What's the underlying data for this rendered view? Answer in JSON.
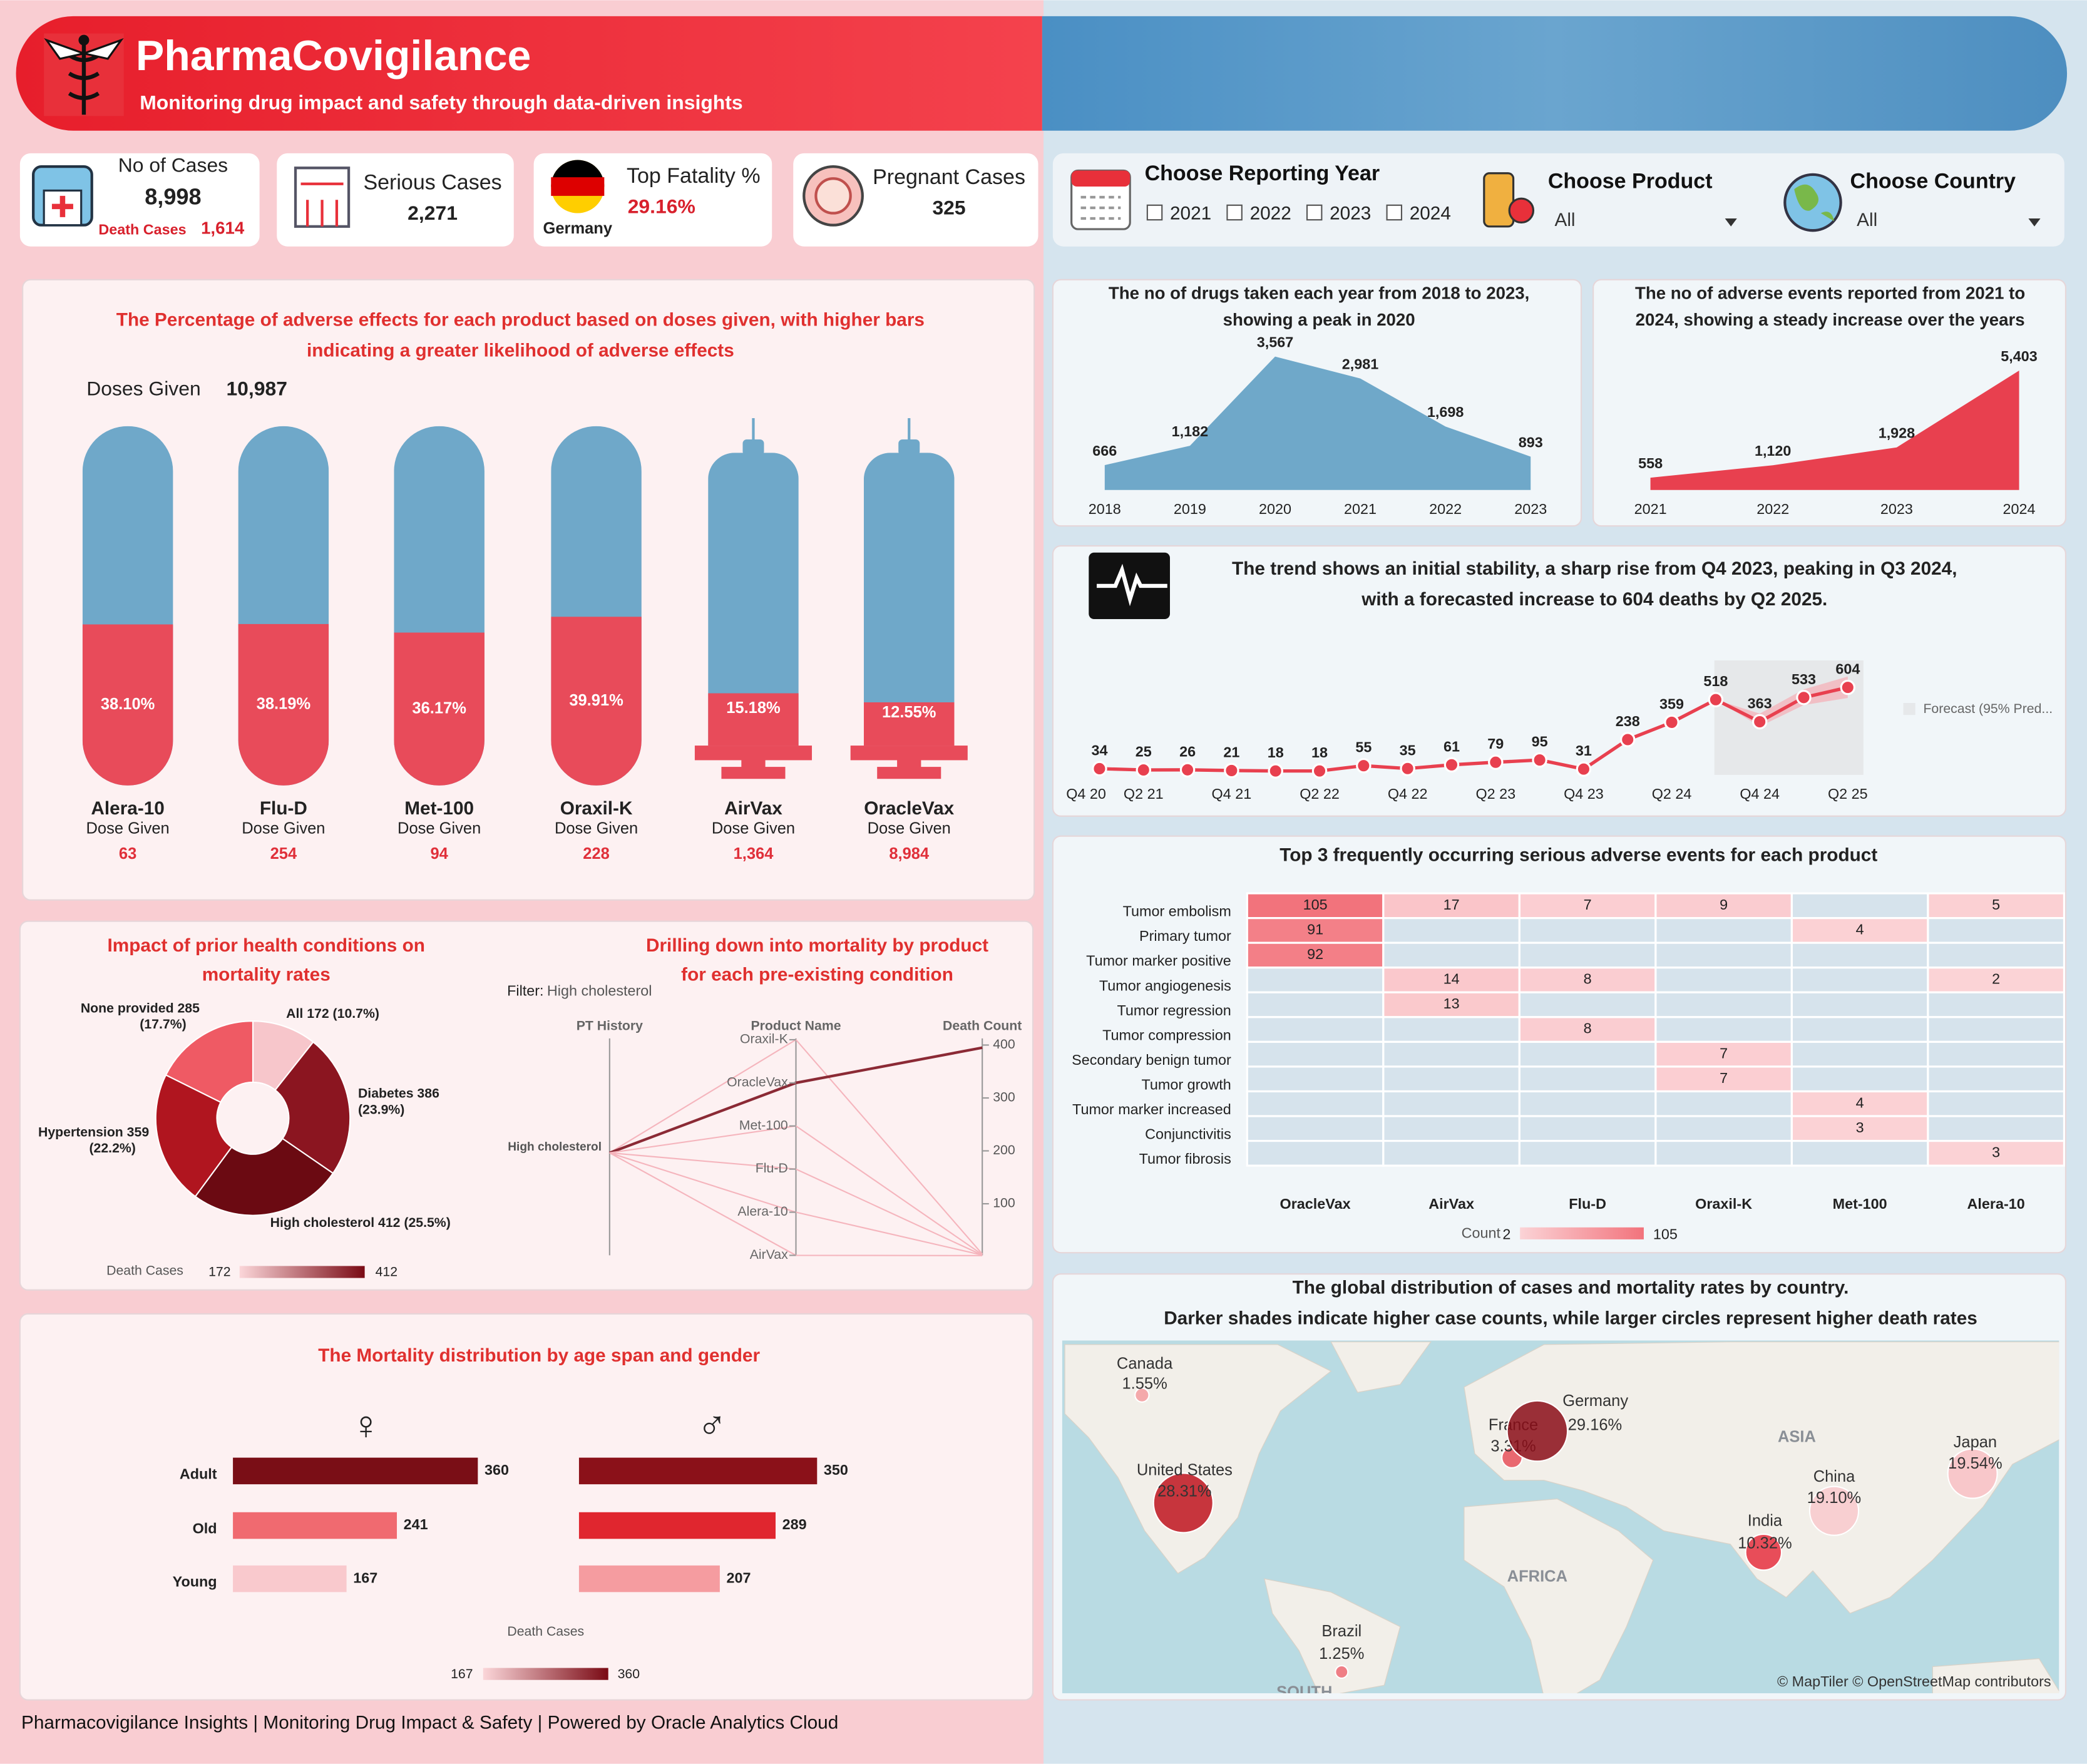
{
  "header": {
    "title": "PharmaCovigilance",
    "subtitle": "Monitoring drug impact and safety through data-driven insights"
  },
  "kpis": [
    {
      "label": "No of Cases",
      "value": "8,998",
      "sub_label": "Death Cases",
      "sub_value": "1,614"
    },
    {
      "label": "Serious Cases",
      "value": "2,271"
    },
    {
      "label": "Top Fatality %",
      "value": "29.16%",
      "sub_value": "Germany"
    },
    {
      "label": "Pregnant Cases",
      "value": "325"
    }
  ],
  "filters": {
    "year": {
      "label": "Choose Reporting Year",
      "options": [
        "2021",
        "2022",
        "2023",
        "2024"
      ]
    },
    "product": {
      "label": "Choose Product",
      "value": "All"
    },
    "country": {
      "label": "Choose Country",
      "value": "All"
    }
  },
  "footer": "Pharmacovigilance Insights | Monitoring Drug Impact & Safety | Powered by Oracle Analytics Cloud",
  "chart_data": [
    {
      "type": "capsule_bar",
      "title": [
        "The Percentage of adverse effects for each product based on doses given, with higher bars",
        "indicating a greater likelihood of adverse effects"
      ],
      "total_label": "Doses Given",
      "total_value": "10,987",
      "categories": [
        "Alera-10",
        "Flu-D",
        "Met-100",
        "Oraxil-K",
        "AirVax",
        "OracleVax"
      ],
      "shapes": [
        "capsule",
        "capsule",
        "capsule",
        "capsule",
        "syringe",
        "syringe"
      ],
      "values": [
        38.1,
        38.19,
        36.17,
        39.91,
        15.18,
        12.55
      ],
      "value_labels": [
        "38.10%",
        "38.19%",
        "36.17%",
        "39.91%",
        "15.18%",
        "12.55%"
      ],
      "ylim": [
        0,
        85
      ],
      "sub_label": "Dose Given",
      "doses": [
        63,
        254,
        94,
        228,
        1364,
        8984
      ],
      "doses_labels": [
        "63",
        "254",
        "94",
        "228",
        "1,364",
        "8,984"
      ],
      "colors": {
        "fill": "#e84b5a",
        "rest": "#6fa8c9"
      }
    },
    {
      "type": "area",
      "title": [
        "The no of drugs taken each year from 2018 to 2023,",
        "showing a peak in 2020"
      ],
      "categories": [
        "2018",
        "2019",
        "2020",
        "2021",
        "2022",
        "2023"
      ],
      "values": [
        666,
        1182,
        3567,
        2981,
        1698,
        893
      ],
      "value_labels": [
        "666",
        "1,182",
        "3,567",
        "2,981",
        "1,698",
        "893"
      ],
      "ylim": [
        0,
        3700
      ],
      "color": "#6fa8c9"
    },
    {
      "type": "area",
      "title": [
        "The no of adverse events reported from 2021 to",
        "2024, showing a steady increase over the years"
      ],
      "categories": [
        "2021",
        "2022",
        "2023",
        "2024"
      ],
      "values": [
        558,
        1120,
        1928,
        5403
      ],
      "value_labels": [
        "558",
        "1,120",
        "1,928",
        "5,403"
      ],
      "ylim": [
        0,
        5600
      ],
      "color": "#e8404f"
    },
    {
      "type": "line",
      "title": [
        "The trend shows an initial stability, a sharp rise from Q4 2023, peaking in Q3 2024,",
        "with a forecasted increase to 604 deaths by Q2 2025."
      ],
      "categories": [
        "Q4 20",
        null,
        "Q2 21",
        null,
        "Q4 21",
        null,
        "Q2 22",
        null,
        "Q4 22",
        null,
        "Q2 23",
        null,
        "Q4 23",
        null,
        "Q2 24",
        null,
        "Q4 24",
        null,
        "Q2 25"
      ],
      "values": [
        null,
        34,
        25,
        26,
        21,
        18,
        18,
        55,
        35,
        61,
        79,
        95,
        31,
        238,
        359,
        518,
        363,
        533,
        604
      ],
      "ylim": [
        0,
        700
      ],
      "color": "#e8404f",
      "forecast": {
        "label": "Forecast (95% Pred...",
        "color": "#f4b4bb",
        "lower": [
          null,
          null,
          null,
          null,
          null,
          null,
          null,
          null,
          null,
          null,
          null,
          null,
          null,
          null,
          null,
          518,
          330,
          480,
          530
        ],
        "upper": [
          null,
          null,
          null,
          null,
          null,
          null,
          null,
          null,
          null,
          null,
          null,
          null,
          null,
          null,
          null,
          518,
          420,
          590,
          680
        ]
      }
    },
    {
      "type": "heatmap",
      "title": "Top 3 frequently occurring serious adverse events for each product",
      "columns": [
        "OracleVax",
        "AirVax",
        "Flu-D",
        "Oraxil-K",
        "Met-100",
        "Alera-10"
      ],
      "rows": [
        "Tumor embolism",
        "Primary tumor",
        "Tumor marker positive",
        "Tumor angiogenesis",
        "Tumor regression",
        "Tumor compression",
        "Secondary benign tumor",
        "Tumor growth",
        "Tumor marker increased",
        "Conjunctivitis",
        "Tumor fibrosis"
      ],
      "values": [
        [
          105,
          17,
          7,
          9,
          null,
          5
        ],
        [
          91,
          null,
          null,
          null,
          4,
          null
        ],
        [
          92,
          null,
          null,
          null,
          null,
          null
        ],
        [
          null,
          14,
          8,
          null,
          null,
          2
        ],
        [
          null,
          13,
          null,
          null,
          null,
          null
        ],
        [
          null,
          null,
          8,
          null,
          null,
          null
        ],
        [
          null,
          null,
          null,
          7,
          null,
          null
        ],
        [
          null,
          null,
          null,
          7,
          null,
          null
        ],
        [
          null,
          null,
          null,
          null,
          4,
          null
        ],
        [
          null,
          null,
          null,
          null,
          3,
          null
        ],
        [
          null,
          null,
          null,
          null,
          null,
          3
        ]
      ],
      "legend": {
        "title": "Count",
        "min": 2,
        "max": 105
      },
      "colors": {
        "low": "#fbd3d6",
        "high": "#f2737c",
        "empty": "#d6e3ec"
      }
    },
    {
      "type": "pie",
      "title": [
        "Impact of prior health conditions on",
        "mortality rates"
      ],
      "categories": [
        "All",
        "Diabetes",
        "High cholesterol",
        "Hypertension",
        "None provided"
      ],
      "values": [
        172,
        386,
        412,
        359,
        285
      ],
      "value_labels": [
        [
          "All 172 (10.7%)"
        ],
        [
          "Diabetes 386",
          "(23.9%)"
        ],
        [
          "High cholesterol 412 (25.5%)"
        ],
        [
          "Hypertension 359",
          "(22.2%)"
        ],
        [
          "None provided 285",
          "(17.7%)"
        ]
      ],
      "colors": [
        "#f7c6cb",
        "#8b1520",
        "#6b0a12",
        "#b0151f",
        "#ef5a64"
      ],
      "hole": 0.37,
      "legend": {
        "title": "Death Cases",
        "min": 172,
        "max": 412
      }
    },
    {
      "type": "parallel",
      "title": [
        "Drilling down into mortality by product",
        "for each pre-existing condition"
      ],
      "filter_label": "Filter:",
      "filter_value": "High cholesterol",
      "axes": [
        "PT History",
        "Product Name",
        "Death Count"
      ],
      "pt_value": "High cholesterol",
      "categories": [
        "Oraxil-K",
        "OracleVax",
        "Met-100",
        "Flu-D",
        "Alera-10",
        "AirVax"
      ],
      "values": [
        5,
        395,
        4,
        3,
        3,
        2
      ],
      "ylim": [
        0,
        400
      ],
      "yticks": [
        100,
        200,
        300,
        400
      ],
      "colors": {
        "main": "#8b2a35",
        "other": "#f5b5bd"
      }
    },
    {
      "type": "hbar",
      "title": "The Mortality distribution by age span and gender",
      "categories": [
        "Adult",
        "Old",
        "Young"
      ],
      "series": [
        {
          "name": "♀",
          "values": [
            360,
            241,
            167
          ],
          "colors": [
            "#7a0e16",
            "#f06a70",
            "#f9c9cd"
          ]
        },
        {
          "name": "♂",
          "values": [
            350,
            289,
            207
          ],
          "colors": [
            "#8b1119",
            "#e0262f",
            "#f59ca0"
          ]
        }
      ],
      "xlim": [
        0,
        360
      ],
      "legend": {
        "title": "Death Cases",
        "min": 167,
        "max": 360
      }
    },
    {
      "type": "bubble_map",
      "title": [
        "The global distribution of cases and mortality rates by country.",
        "Darker shades indicate higher case counts, while larger circles represent higher death rates"
      ],
      "categories": [
        "Canada",
        "United States",
        "France",
        "Germany",
        "China",
        "India",
        "Japan",
        "Brazil"
      ],
      "values": [
        1.55,
        28.31,
        3.31,
        29.16,
        19.1,
        10.32,
        19.54,
        1.25
      ],
      "value_labels": [
        "1.55%",
        "28.31%",
        "3.31%",
        "29.16%",
        "19.10%",
        "10.32%",
        "19.54%",
        "1.25%"
      ],
      "colors": [
        "#f59ca0",
        "#c0141f",
        "#e8505a",
        "#8b0d17",
        "#f9c9cd",
        "#e63040",
        "#f9c0c4",
        "#ef6a73"
      ],
      "regions": [
        "ASIA",
        "AFRICA",
        "SOUTH"
      ],
      "attribution": "© MapTiler © OpenStreetMap contributors"
    }
  ]
}
